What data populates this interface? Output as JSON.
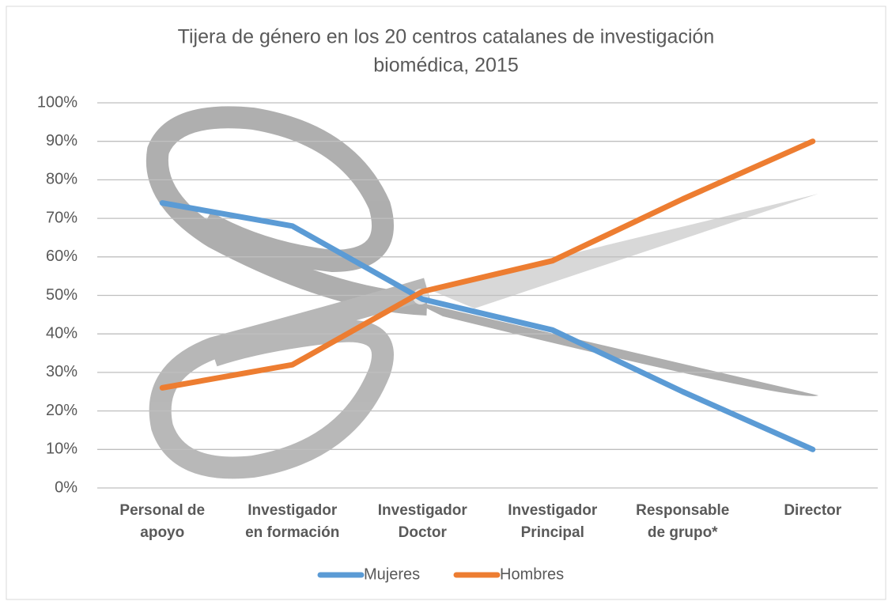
{
  "chart_data": {
    "type": "line",
    "title": [
      "Tijera de género en los 20 centros catalanes de investigación",
      "biomédica, 2015"
    ],
    "categories": [
      [
        "Personal de",
        "apoyo"
      ],
      [
        "Investigador",
        "en  formación"
      ],
      [
        "Investigador",
        "Doctor"
      ],
      [
        "Investigador",
        "Principal"
      ],
      [
        "Responsable",
        "de grupo*"
      ],
      [
        "Director"
      ]
    ],
    "series": [
      {
        "name": "Mujeres",
        "color": "#5b9bd5",
        "values": [
          74,
          68,
          49,
          41,
          25,
          10
        ]
      },
      {
        "name": "Hombres",
        "color": "#ed7d31",
        "values": [
          26,
          32,
          51,
          59,
          75,
          90
        ]
      }
    ],
    "ylim": [
      0,
      100
    ],
    "yticks": [
      {
        "value": 0,
        "label": "0%"
      },
      {
        "value": 10,
        "label": "10%"
      },
      {
        "value": 20,
        "label": "20%"
      },
      {
        "value": 30,
        "label": "30%"
      },
      {
        "value": 40,
        "label": "40%"
      },
      {
        "value": 50,
        "label": "50%"
      },
      {
        "value": 60,
        "label": "60%"
      },
      {
        "value": 70,
        "label": "70%"
      },
      {
        "value": 80,
        "label": "80%"
      },
      {
        "value": 90,
        "label": "90%"
      },
      {
        "value": 100,
        "label": "100%"
      }
    ],
    "grid": true,
    "legend": "bottom"
  }
}
